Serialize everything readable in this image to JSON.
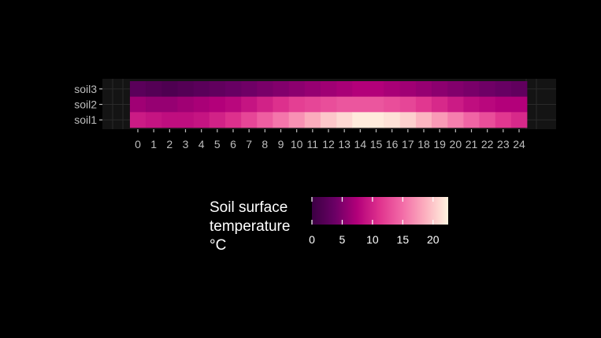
{
  "chart_data": {
    "type": "heatmap",
    "title": "",
    "xlabel": "",
    "ylabel": "",
    "x": [
      0,
      1,
      2,
      3,
      4,
      5,
      6,
      7,
      8,
      9,
      10,
      11,
      12,
      13,
      14,
      15,
      16,
      17,
      18,
      19,
      20,
      21,
      22,
      23,
      24
    ],
    "x_tick_labels": [
      "0",
      "1",
      "2",
      "3",
      "4",
      "5",
      "6",
      "7",
      "8",
      "9",
      "10",
      "11",
      "12",
      "13",
      "14",
      "15",
      "16",
      "17",
      "18",
      "19",
      "20",
      "21",
      "22",
      "23",
      "24"
    ],
    "y": [
      "soil3",
      "soil2",
      "soil1"
    ],
    "values": [
      [
        2.5,
        2.0,
        1.5,
        2.0,
        2.5,
        3.0,
        3.5,
        4.0,
        4.5,
        5.0,
        5.5,
        6.0,
        6.5,
        7.0,
        7.5,
        7.5,
        7.0,
        6.5,
        6.0,
        5.5,
        5.0,
        4.5,
        4.0,
        3.5,
        3.0
      ],
      [
        6.5,
        6.0,
        6.0,
        6.5,
        7.0,
        7.5,
        8.0,
        9.0,
        10.0,
        11.0,
        12.0,
        12.5,
        13.0,
        13.5,
        13.5,
        13.5,
        13.0,
        12.5,
        11.5,
        10.5,
        9.5,
        8.5,
        8.0,
        7.5,
        7.5
      ],
      [
        9.5,
        9.0,
        8.5,
        8.5,
        9.0,
        10.0,
        11.0,
        12.5,
        14.0,
        15.5,
        17.0,
        18.5,
        20.0,
        21.0,
        22.0,
        22.0,
        21.5,
        20.5,
        19.0,
        17.5,
        16.0,
        14.5,
        13.0,
        11.5,
        10.5
      ]
    ],
    "legend": {
      "title": [
        "Soil surface",
        "temperature",
        "°C"
      ],
      "ticks": [
        0,
        5,
        10,
        15,
        20
      ],
      "range": [
        0,
        22.5
      ],
      "placement": "bottom"
    },
    "colors": [
      "#3b0043",
      "#6a0065",
      "#b3007a",
      "#e0338e",
      "#f36da8",
      "#fcb0bf",
      "#fff4e0"
    ],
    "background": "#000000",
    "panel_color": "#141414",
    "grid": true
  }
}
